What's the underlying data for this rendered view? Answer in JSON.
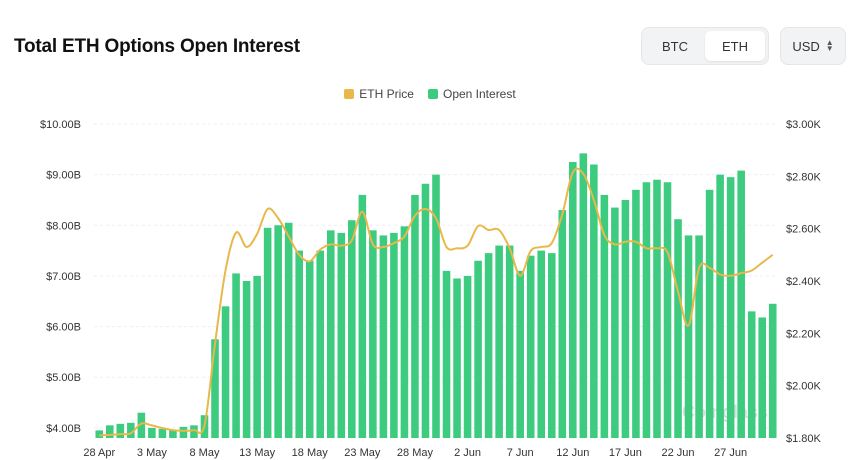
{
  "header": {
    "title": "Total ETH Options Open Interest",
    "asset_options": [
      "BTC",
      "ETH"
    ],
    "asset_selected": "ETH",
    "currency": "USD"
  },
  "legend": {
    "price_label": "ETH Price",
    "oi_label": "Open Interest"
  },
  "colors": {
    "price_line": "#E8B84A",
    "oi_bar": "#3CCB7F",
    "grid": "#ECEEF1"
  },
  "watermark": "Coinglass",
  "chart_data": {
    "type": "bar",
    "title": "Total ETH Options Open Interest",
    "x": [
      "28 Apr",
      "29 Apr",
      "30 Apr",
      "1 May",
      "2 May",
      "3 May",
      "4 May",
      "5 May",
      "6 May",
      "7 May",
      "8 May",
      "9 May",
      "10 May",
      "11 May",
      "12 May",
      "13 May",
      "14 May",
      "15 May",
      "16 May",
      "17 May",
      "18 May",
      "19 May",
      "20 May",
      "21 May",
      "22 May",
      "23 May",
      "24 May",
      "25 May",
      "26 May",
      "27 May",
      "28 May",
      "29 May",
      "30 May",
      "31 May",
      "1 Jun",
      "2 Jun",
      "3 Jun",
      "4 Jun",
      "5 Jun",
      "6 Jun",
      "7 Jun",
      "8 Jun",
      "9 Jun",
      "10 Jun",
      "11 Jun",
      "12 Jun",
      "13 Jun",
      "14 Jun",
      "15 Jun",
      "16 Jun",
      "17 Jun",
      "18 Jun",
      "19 Jun",
      "20 Jun",
      "21 Jun",
      "22 Jun",
      "23 Jun",
      "24 Jun",
      "25 Jun",
      "26 Jun",
      "27 Jun",
      "28 Jun",
      "29 Jun",
      "30 Jun",
      "1 Jul"
    ],
    "x_tick_labels": [
      "28 Apr",
      "3 May",
      "8 May",
      "13 May",
      "18 May",
      "23 May",
      "28 May",
      "2 Jun",
      "7 Jun",
      "12 Jun",
      "17 Jun",
      "22 Jun",
      "27 Jun"
    ],
    "series": [
      {
        "name": "Open Interest",
        "type": "bar",
        "axis": "left",
        "values": [
          3.95,
          4.05,
          4.08,
          4.1,
          4.3,
          4.0,
          3.98,
          3.96,
          4.02,
          4.05,
          4.25,
          5.75,
          6.4,
          7.05,
          6.9,
          7.0,
          7.95,
          8.0,
          8.05,
          7.5,
          7.3,
          7.5,
          7.9,
          7.85,
          8.1,
          8.6,
          7.9,
          7.8,
          7.85,
          7.98,
          8.6,
          8.82,
          9.0,
          7.1,
          6.95,
          7.0,
          7.3,
          7.45,
          7.6,
          7.6,
          7.1,
          7.4,
          7.5,
          7.45,
          8.3,
          9.25,
          9.42,
          9.2,
          8.6,
          8.35,
          8.5,
          8.7,
          8.85,
          8.9,
          8.85,
          8.12,
          7.8,
          7.8,
          8.7,
          9.0,
          8.95,
          9.08,
          6.3,
          6.18,
          6.45
        ]
      },
      {
        "name": "ETH Price",
        "type": "line",
        "axis": "right",
        "values": [
          1810,
          1812,
          1815,
          1818,
          1855,
          1848,
          1838,
          1830,
          1828,
          1830,
          1848,
          2160,
          2440,
          2585,
          2530,
          2580,
          2675,
          2640,
          2570,
          2500,
          2475,
          2520,
          2540,
          2535,
          2555,
          2665,
          2540,
          2530,
          2545,
          2570,
          2650,
          2675,
          2640,
          2530,
          2525,
          2535,
          2610,
          2595,
          2595,
          2525,
          2420,
          2515,
          2530,
          2545,
          2655,
          2815,
          2810,
          2710,
          2575,
          2540,
          2550,
          2550,
          2525,
          2525,
          2510,
          2360,
          2230,
          2450,
          2450,
          2425,
          2420,
          2430,
          2440,
          2470,
          2500
        ]
      }
    ],
    "y_left": {
      "min": 3.8,
      "max": 10.0,
      "ticks": [
        4.0,
        5.0,
        6.0,
        7.0,
        8.0,
        9.0,
        10.0
      ],
      "tick_labels": [
        "$4.00B",
        "$5.00B",
        "$6.00B",
        "$7.00B",
        "$8.00B",
        "$9.00B",
        "$10.00B"
      ]
    },
    "y_right": {
      "min": 1800,
      "max": 3000,
      "ticks": [
        1800,
        2000,
        2200,
        2400,
        2600,
        2800,
        3000
      ],
      "tick_labels": [
        "$1.80K",
        "$2.00K",
        "$2.20K",
        "$2.40K",
        "$2.60K",
        "$2.80K",
        "$3.00K"
      ]
    },
    "grid": true,
    "legend_position": "top-center"
  }
}
